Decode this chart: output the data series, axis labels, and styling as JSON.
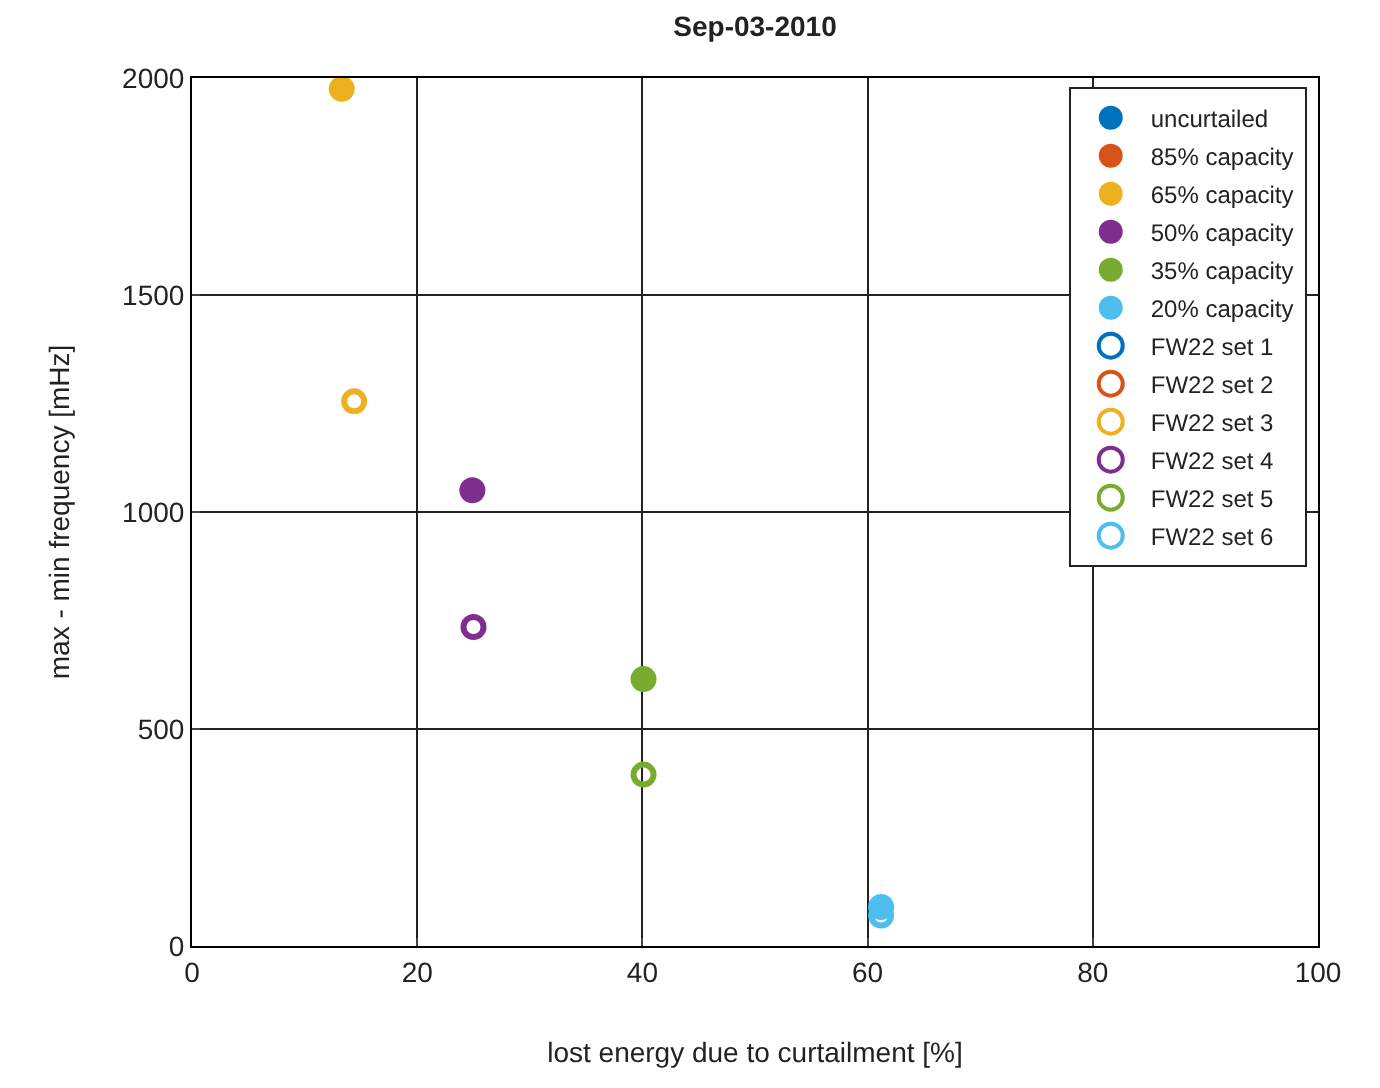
{
  "chart_data": {
    "type": "scatter",
    "title": "Sep-03-2010",
    "xlabel": "lost energy due to curtailment [%]",
    "ylabel": "max - min frequency [mHz]",
    "xlim": [
      0,
      100
    ],
    "xticks": [
      0,
      20,
      40,
      60,
      80,
      100
    ],
    "ylim": [
      0,
      2000
    ],
    "yticks": [
      0,
      500,
      1000,
      1500,
      2000
    ],
    "grid": true,
    "legend": "top right",
    "series": [
      {
        "name": "uncurtailed",
        "color": "#0072bd",
        "marker": "circle",
        "values": [
          null
        ]
      },
      {
        "name": "85% capacity",
        "color": "#d95319",
        "marker": "circle",
        "values": [
          null
        ]
      },
      {
        "name": "65% capacity",
        "color": "#edb120",
        "marker": "circle",
        "x": [
          13.3
        ],
        "values": [
          1975
        ]
      },
      {
        "name": "50% capacity",
        "color": "#7e2f8e",
        "marker": "circle",
        "x": [
          24.9
        ],
        "values": [
          1050
        ]
      },
      {
        "name": "35% capacity",
        "color": "#77ac30",
        "marker": "circle",
        "x": [
          40.1
        ],
        "values": [
          615
        ]
      },
      {
        "name": "20% capacity",
        "color": "#4dbeee",
        "marker": "circle",
        "x": [
          61.2
        ],
        "values": [
          90
        ]
      },
      {
        "name": "FW22 set 1",
        "color": "#0072bd",
        "marker": "circle-open",
        "values": [
          null
        ]
      },
      {
        "name": "FW22 set 2",
        "color": "#d95319",
        "marker": "circle-open",
        "values": [
          null
        ]
      },
      {
        "name": "FW22 set 3",
        "color": "#edb120",
        "marker": "circle-open",
        "x": [
          14.4
        ],
        "values": [
          1255
        ]
      },
      {
        "name": "FW22 set 4",
        "color": "#7e2f8e",
        "marker": "circle-open",
        "x": [
          25.0
        ],
        "values": [
          735
        ]
      },
      {
        "name": "FW22 set 5",
        "color": "#77ac30",
        "marker": "circle-open",
        "x": [
          40.1
        ],
        "values": [
          395
        ]
      },
      {
        "name": "FW22 set 6",
        "color": "#4dbeee",
        "marker": "circle-open",
        "x": [
          61.2
        ],
        "values": [
          70
        ]
      }
    ]
  }
}
